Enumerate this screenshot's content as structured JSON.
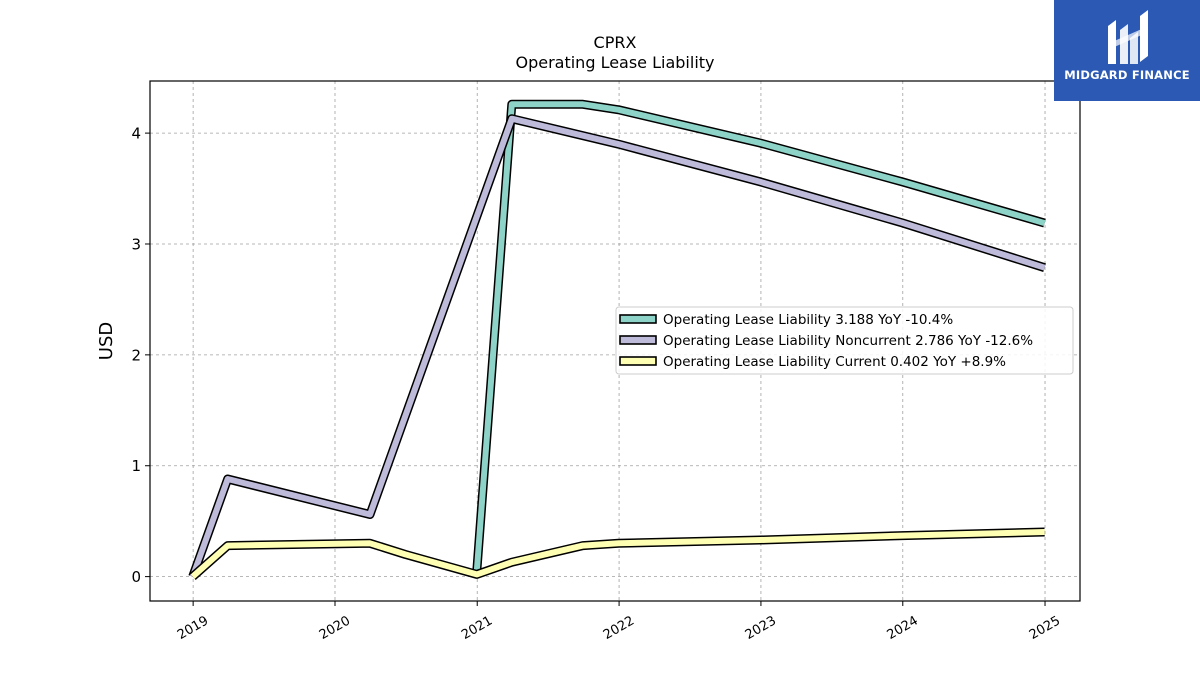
{
  "chart_data": {
    "type": "line",
    "title": "CPRX",
    "subtitle": "Operating Lease Liability",
    "xlabel": "",
    "ylabel": "USD",
    "x_ticks": [
      "2019",
      "2020",
      "2021",
      "2022",
      "2023",
      "2024",
      "2025"
    ],
    "y_ticks": [
      0,
      1,
      2,
      3,
      4
    ],
    "xlim": [
      "2018-09-12",
      "2025-04-01"
    ],
    "ylim": [
      -0.22,
      4.47
    ],
    "grid": true,
    "legend_position": "center-right",
    "series": [
      {
        "name": "Operating Lease Liability",
        "legend": "Operating Lease Liability  3.188 YoY -10.4%",
        "color": "#8dd3c7",
        "points": [
          [
            "2020-12-31",
            0.05
          ],
          [
            "2021-03-31",
            4.26
          ],
          [
            "2021-09-30",
            4.26
          ],
          [
            "2021-12-31",
            4.21
          ],
          [
            "2022-12-31",
            3.91
          ],
          [
            "2023-12-31",
            3.56
          ],
          [
            "2024-12-31",
            3.188
          ]
        ]
      },
      {
        "name": "Operating Lease Liability Noncurrent",
        "legend": "Operating Lease Liability Noncurrent  2.786 YoY -12.6%",
        "color": "#bebada",
        "points": [
          [
            "2018-12-31",
            0.0
          ],
          [
            "2019-03-31",
            0.88
          ],
          [
            "2020-03-31",
            0.56
          ],
          [
            "2021-03-31",
            4.13
          ],
          [
            "2021-12-31",
            3.9
          ],
          [
            "2022-12-31",
            3.56
          ],
          [
            "2023-12-31",
            3.19
          ],
          [
            "2024-12-31",
            2.786
          ]
        ]
      },
      {
        "name": "Operating Lease Liability Current",
        "legend": "Operating Lease Liability Current  0.402 YoY +8.9%",
        "color": "#ffffb3",
        "points": [
          [
            "2018-12-31",
            0.0
          ],
          [
            "2019-03-31",
            0.28
          ],
          [
            "2020-03-31",
            0.3
          ],
          [
            "2020-06-30",
            0.2
          ],
          [
            "2020-12-31",
            0.02
          ],
          [
            "2021-03-31",
            0.13
          ],
          [
            "2021-09-30",
            0.28
          ],
          [
            "2021-12-31",
            0.3
          ],
          [
            "2022-12-31",
            0.33
          ],
          [
            "2023-12-31",
            0.37
          ],
          [
            "2024-12-31",
            0.402
          ]
        ]
      }
    ]
  },
  "logo": {
    "text": "MIDGARD FINANCE",
    "background": "#2b59b4"
  }
}
